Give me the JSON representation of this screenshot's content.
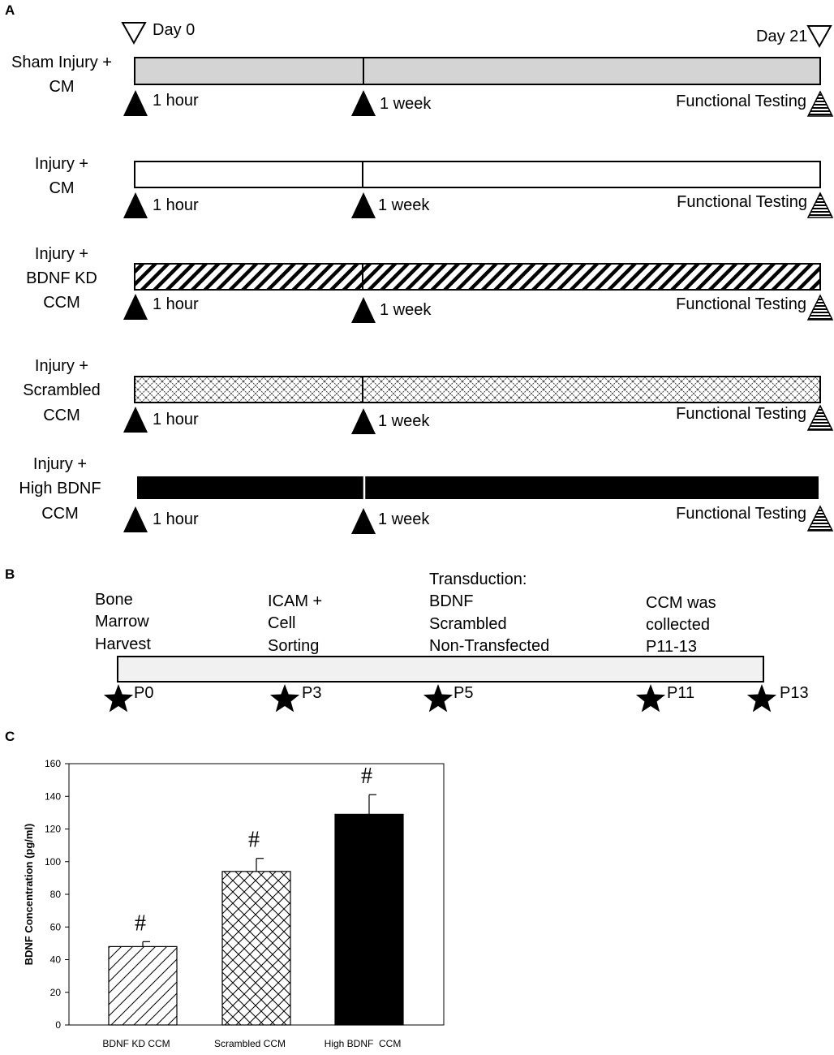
{
  "panelA": {
    "label": "A",
    "day0": "Day 0",
    "day21": "Day 21",
    "groups": [
      {
        "name": [
          "Sham Injury +",
          "CM"
        ],
        "fill": "gray",
        "m1": "1 hour",
        "m2": "1 week",
        "end": "Functional Testing"
      },
      {
        "name": [
          "Injury +",
          "CM"
        ],
        "fill": "white",
        "m1": "1 hour",
        "m2": "1 week",
        "end": "Functional Testing"
      },
      {
        "name": [
          "Injury +",
          "BDNF KD",
          "CCM"
        ],
        "fill": "diagonal",
        "m1": "1 hour",
        "m2": "1 week",
        "end": "Functional Testing"
      },
      {
        "name": [
          "Injury +",
          "Scrambled",
          "CCM"
        ],
        "fill": "crosshatch",
        "m1": "1 hour",
        "m2": "1 week",
        "end": "Functional Testing"
      },
      {
        "name": [
          "Injury +",
          "High BDNF",
          "CCM"
        ],
        "fill": "black",
        "m1": "1 hour",
        "m2": "1 week",
        "end": "Functional Testing"
      }
    ]
  },
  "panelB": {
    "label": "B",
    "steps": [
      {
        "text": [
          "Bone",
          "Marrow",
          "Harvest"
        ]
      },
      {
        "text": [
          "ICAM +",
          "Cell",
          "Sorting"
        ]
      },
      {
        "text": [
          "Transduction:",
          "BDNF",
          "Scrambled",
          "Non-Transfected"
        ]
      },
      {
        "text": [
          "CCM was",
          "collected",
          "P11-13"
        ]
      }
    ],
    "markers": [
      "P0",
      "P3",
      "P5",
      "P11",
      "P13"
    ]
  },
  "panelC": {
    "label": "C"
  },
  "chart_data": {
    "type": "bar",
    "categories": [
      "BDNF KD CCM",
      "Scrambled CCM",
      "High BDNF  CCM"
    ],
    "values": [
      48,
      94,
      129
    ],
    "errors": [
      3,
      8,
      12
    ],
    "annotations": [
      "#",
      "#",
      "#"
    ],
    "patterns": [
      "diagonal",
      "crosshatch",
      "solid"
    ],
    "ylabel": "BDNF Concentration (pg/ml)",
    "xlabel": "",
    "ylim": [
      0,
      160
    ],
    "yticks": [
      0,
      20,
      40,
      60,
      80,
      100,
      120,
      140,
      160
    ],
    "grid": false
  }
}
